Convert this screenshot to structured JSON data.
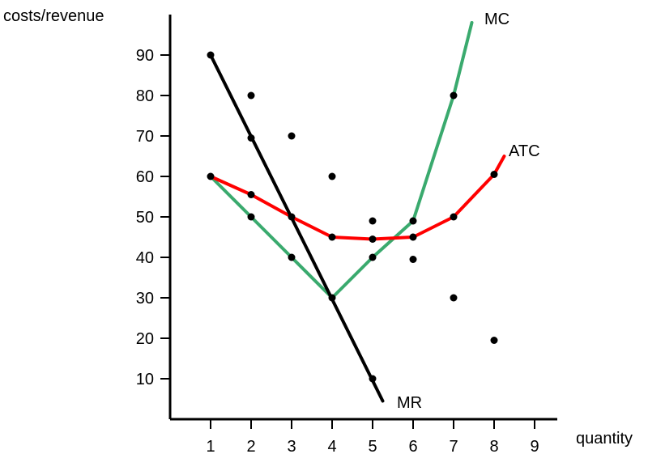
{
  "chart_data": {
    "type": "line",
    "ylabel": "costs/revenue",
    "xlabel": "quantity",
    "x_ticks": [
      1,
      2,
      3,
      4,
      5,
      6,
      7,
      8,
      9
    ],
    "y_ticks": [
      10,
      20,
      30,
      40,
      50,
      60,
      70,
      80,
      90
    ],
    "xlim": [
      0,
      10
    ],
    "ylim": [
      0,
      100
    ],
    "series": [
      {
        "name": "MC",
        "color": "#3aaa6e",
        "points": [
          [
            1,
            60
          ],
          [
            2,
            50
          ],
          [
            3,
            40
          ],
          [
            4,
            30
          ],
          [
            5,
            40
          ],
          [
            6,
            49
          ],
          [
            7,
            80
          ],
          [
            7.45,
            98
          ]
        ]
      },
      {
        "name": "ATC",
        "color": "#ff0000",
        "points": [
          [
            1,
            60
          ],
          [
            2,
            55.5
          ],
          [
            3,
            50
          ],
          [
            4,
            45
          ],
          [
            5,
            44.5
          ],
          [
            6,
            45
          ],
          [
            7,
            50
          ],
          [
            8,
            60.5
          ],
          [
            8.25,
            65
          ]
        ]
      },
      {
        "name": "MR",
        "color": "#000000",
        "points": [
          [
            1,
            90
          ],
          [
            5.25,
            4.5
          ]
        ]
      }
    ],
    "dots": [
      [
        1,
        90
      ],
      [
        2,
        80
      ],
      [
        3,
        70
      ],
      [
        4,
        60
      ],
      [
        5,
        49
      ],
      [
        6,
        39.5
      ],
      [
        7,
        30
      ],
      [
        8,
        19.5
      ],
      [
        2,
        69.5
      ],
      [
        3,
        50
      ],
      [
        4,
        30
      ],
      [
        5,
        10
      ],
      [
        1,
        60
      ],
      [
        2,
        50
      ],
      [
        3,
        40
      ],
      [
        5,
        40
      ],
      [
        6,
        49
      ],
      [
        7,
        80
      ],
      [
        2,
        55.5
      ],
      [
        4,
        45
      ],
      [
        5,
        44.5
      ],
      [
        6,
        45
      ],
      [
        7,
        50
      ],
      [
        8,
        60.5
      ]
    ]
  }
}
